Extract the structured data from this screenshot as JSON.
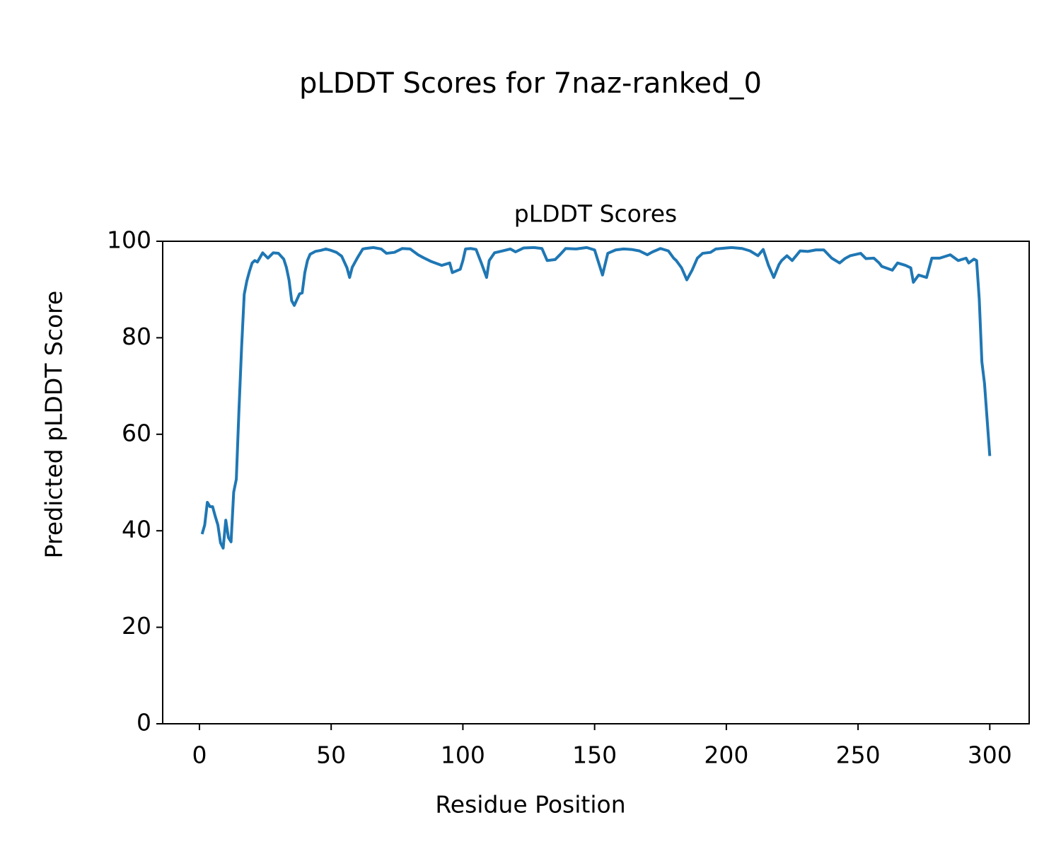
{
  "chart_data": {
    "type": "line",
    "suptitle": "pLDDT Scores for 7naz-ranked_0",
    "title": "pLDDT Scores",
    "x_label": "Residue Position",
    "y_label": "Predicted pLDDT Score",
    "xlim": [
      -13.95,
      314.95
    ],
    "xticks": [
      0,
      50,
      100,
      150,
      200,
      250,
      300
    ],
    "ylim": [
      0,
      100
    ],
    "yticks": [
      0,
      20,
      40,
      60,
      80,
      100
    ],
    "grid": false,
    "series": [
      {
        "name": "pLDDT",
        "color": "#1f77b4",
        "x": [
          1,
          2,
          3,
          4,
          5,
          6,
          7,
          8,
          9,
          10,
          11,
          12,
          13,
          14,
          15,
          16,
          17,
          18,
          19,
          20,
          21,
          22,
          24,
          26,
          28,
          30,
          32,
          33,
          34,
          35,
          36,
          38,
          39,
          40,
          41,
          42,
          44,
          46,
          48,
          50,
          52,
          54,
          56,
          57,
          58,
          60,
          62,
          63,
          66,
          69,
          71,
          74,
          77,
          80,
          83,
          85,
          88,
          92,
          95,
          96,
          99,
          100,
          101,
          103,
          105,
          107,
          109,
          110,
          112,
          115,
          118,
          120,
          123,
          127,
          130,
          132,
          135,
          137,
          139,
          143,
          147,
          150,
          153,
          155,
          158,
          161,
          164,
          167,
          170,
          172,
          175,
          178,
          180,
          181,
          183,
          185,
          187,
          189,
          191,
          194,
          196,
          200,
          202,
          206,
          209,
          212,
          214,
          216,
          218,
          220,
          221,
          223,
          225,
          228,
          231,
          234,
          237,
          240,
          243,
          245,
          247,
          251,
          253,
          256,
          258,
          259,
          263,
          265,
          268,
          270,
          271,
          273,
          276,
          278,
          281,
          285,
          288,
          291,
          292,
          294,
          295,
          296,
          297,
          298,
          300
        ],
        "values": [
          39.3,
          41.2,
          45.9,
          45,
          45,
          43,
          41.2,
          37.5,
          36.4,
          42.2,
          38.6,
          37.7,
          48,
          50.7,
          65,
          78,
          89,
          91.8,
          93.8,
          95.5,
          96,
          95.7,
          97.6,
          96.5,
          97.6,
          97.5,
          96.3,
          94.6,
          92,
          87.7,
          86.7,
          89.1,
          89.3,
          93.5,
          96,
          97.3,
          97.9,
          98.1,
          98.4,
          98.1,
          97.7,
          96.9,
          94.5,
          92.5,
          94.6,
          96.6,
          98.4,
          98.5,
          98.7,
          98.4,
          97.5,
          97.7,
          98.5,
          98.4,
          97.2,
          96.6,
          95.8,
          95,
          95.5,
          93.5,
          94.2,
          96,
          98.4,
          98.5,
          98.3,
          95.5,
          92.5,
          96,
          97.6,
          98,
          98.4,
          97.8,
          98.6,
          98.7,
          98.5,
          96,
          96.2,
          97.3,
          98.5,
          98.4,
          98.7,
          98.2,
          93,
          97.5,
          98.2,
          98.4,
          98.3,
          98,
          97.2,
          97.8,
          98.5,
          98,
          96.5,
          96,
          94.5,
          92,
          94,
          96.5,
          97.5,
          97.7,
          98.4,
          98.6,
          98.7,
          98.5,
          98,
          97,
          98.3,
          95,
          92.5,
          95.2,
          96,
          97,
          96,
          98,
          97.9,
          98.2,
          98.2,
          96.5,
          95.5,
          96.4,
          97,
          97.5,
          96.4,
          96.5,
          95.5,
          94.8,
          94,
          95.5,
          95,
          94.5,
          91.5,
          93,
          92.5,
          96.5,
          96.5,
          97.2,
          96,
          96.5,
          95.5,
          96.3,
          96,
          88,
          75,
          70.5,
          55.5
        ]
      }
    ]
  }
}
